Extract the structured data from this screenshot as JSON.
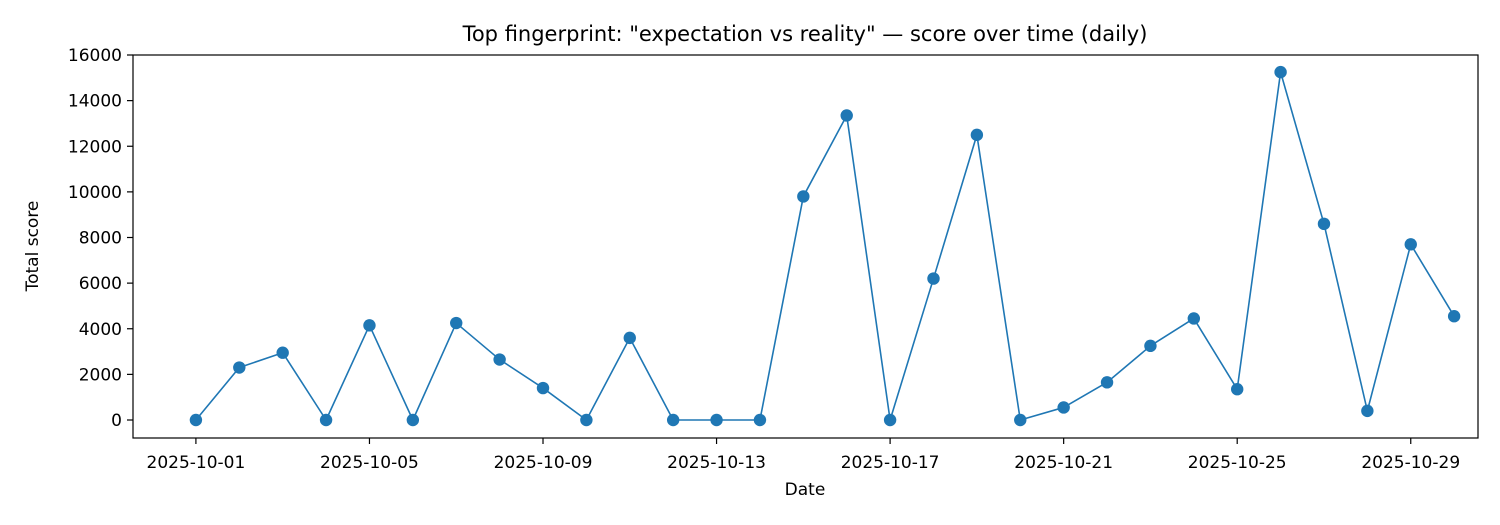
{
  "chart_data": {
    "type": "line",
    "title": "Top fingerprint: \"expectation vs reality\" — score over time (daily)",
    "xlabel": "Date",
    "ylabel": "Total score",
    "x_tick_labels": [
      "2025-10-01",
      "2025-10-05",
      "2025-10-09",
      "2025-10-13",
      "2025-10-17",
      "2025-10-21",
      "2025-10-25",
      "2025-10-29"
    ],
    "y_tick_labels": [
      "0",
      "2000",
      "4000",
      "6000",
      "8000",
      "10000",
      "12000",
      "14000",
      "16000"
    ],
    "ylim": [
      0,
      16000
    ],
    "xlim": [
      "2025-09-29",
      "2025-10-31"
    ],
    "grid": false,
    "series_color": "#1f77b4",
    "x": [
      "2025-10-01",
      "2025-10-02",
      "2025-10-03",
      "2025-10-04",
      "2025-10-05",
      "2025-10-06",
      "2025-10-07",
      "2025-10-08",
      "2025-10-09",
      "2025-10-10",
      "2025-10-11",
      "2025-10-12",
      "2025-10-13",
      "2025-10-14",
      "2025-10-15",
      "2025-10-16",
      "2025-10-17",
      "2025-10-18",
      "2025-10-19",
      "2025-10-20",
      "2025-10-21",
      "2025-10-22",
      "2025-10-23",
      "2025-10-24",
      "2025-10-25",
      "2025-10-26",
      "2025-10-27",
      "2025-10-28",
      "2025-10-29",
      "2025-10-30"
    ],
    "series": [
      {
        "values": [
          0,
          2300,
          2950,
          0,
          4150,
          0,
          4250,
          2650,
          1400,
          0,
          3600,
          0,
          0,
          0,
          9800,
          13350,
          0,
          6200,
          12500,
          0,
          550,
          1650,
          3250,
          4450,
          1350,
          15250,
          8600,
          400,
          7700,
          4550
        ]
      }
    ]
  }
}
